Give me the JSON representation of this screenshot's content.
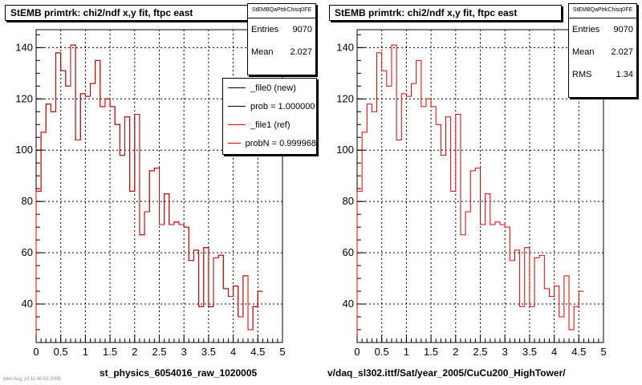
{
  "colors": {
    "ref": "#dd0000",
    "new": "#000000",
    "axis": "#000000"
  },
  "footer": "Mon Aug 10 11:40:02 2009",
  "left": {
    "title": "StEMB primtrk: chi2/ndf x,y fit, ftpc east",
    "xlabel": "st_physics_6054016_raw_1020005",
    "stats": {
      "name": "StEMBQaPtrkChisq0FE",
      "rows": [
        {
          "label": "Entries",
          "value": "9070"
        },
        {
          "label": "Mean",
          "value": "2.027"
        }
      ]
    },
    "legend": [
      {
        "label": "_file0 (new)",
        "color": "#000000"
      },
      {
        "label": "prob = 1.000000",
        "color": "#000000"
      },
      {
        "label": "_file1 (ref)",
        "color": "#dd0000"
      },
      {
        "label": "probN = 0.999968",
        "color": "#dd0000"
      }
    ]
  },
  "right": {
    "title": "StEMB primtrk: chi2/ndf x,y fit, ftpc east",
    "xlabel": "v/daq_sl302.ittf/Sat/year_2005/CuCu200_HighTower/",
    "stats": {
      "name": "StEMBQaPtrkChisq0FE",
      "rows": [
        {
          "label": "Entries",
          "value": "9070"
        },
        {
          "label": "Mean",
          "value": "2.027"
        },
        {
          "label": "RMS",
          "value": "1.34"
        }
      ]
    }
  },
  "chart_data": [
    {
      "type": "histogram",
      "title": "StEMB primtrk: chi2/ndf x,y fit, ftpc east",
      "xlabel": "st_physics_6054016_raw_1020005",
      "xlim": [
        0,
        5
      ],
      "ylim": [
        25,
        147
      ],
      "xticks": [
        "0",
        "0.5",
        "1",
        "1.5",
        "2",
        "2.5",
        "3",
        "3.5",
        "4",
        "4.5",
        "5"
      ],
      "yticks": [
        "40",
        "60",
        "80",
        "100",
        "120",
        "140"
      ],
      "grid": true,
      "legend_position": "top-right",
      "bin_width": 0.1,
      "series": [
        {
          "name": "_file0 (new)",
          "color": "#000000",
          "values": [
            84,
            107,
            118,
            115,
            138,
            131,
            125,
            141,
            104,
            122,
            121,
            126,
            135,
            117,
            120,
            117,
            110,
            98,
            113,
            84,
            114,
            67,
            76,
            92,
            93,
            71,
            83,
            71,
            72,
            71,
            70,
            57,
            61,
            39,
            62,
            39,
            58,
            59,
            46,
            43,
            47,
            35,
            51,
            30,
            39,
            45
          ]
        },
        {
          "name": "_file1 (ref)",
          "color": "#dd0000",
          "values": [
            84,
            107,
            118,
            115,
            138,
            131,
            125,
            141,
            104,
            122,
            121,
            126,
            135,
            117,
            120,
            117,
            110,
            98,
            113,
            84,
            114,
            67,
            76,
            92,
            93,
            71,
            83,
            71,
            72,
            71,
            70,
            57,
            61,
            39,
            62,
            39,
            58,
            59,
            46,
            43,
            47,
            35,
            51,
            30,
            39,
            45
          ]
        }
      ]
    },
    {
      "type": "histogram",
      "title": "StEMB primtrk: chi2/ndf x,y fit, ftpc east",
      "xlabel": "v/daq_sl302.ittf/Sat/year_2005/CuCu200_HighTower/",
      "xlim": [
        0,
        5
      ],
      "ylim": [
        25,
        147
      ],
      "xticks": [
        "0",
        "0.5",
        "1",
        "1.5",
        "2",
        "2.5",
        "3",
        "3.5",
        "4",
        "4.5",
        "5"
      ],
      "yticks": [
        "40",
        "60",
        "80",
        "100",
        "120",
        "140"
      ],
      "grid": true,
      "bin_width": 0.1,
      "series": [
        {
          "name": "_file1 (ref)",
          "color": "#dd0000",
          "values": [
            84,
            107,
            118,
            115,
            138,
            131,
            125,
            141,
            104,
            122,
            121,
            126,
            135,
            117,
            120,
            117,
            110,
            98,
            113,
            84,
            114,
            67,
            76,
            92,
            93,
            71,
            83,
            71,
            72,
            71,
            70,
            57,
            61,
            39,
            62,
            39,
            58,
            59,
            46,
            43,
            47,
            35,
            51,
            30,
            39,
            45
          ]
        }
      ]
    }
  ]
}
